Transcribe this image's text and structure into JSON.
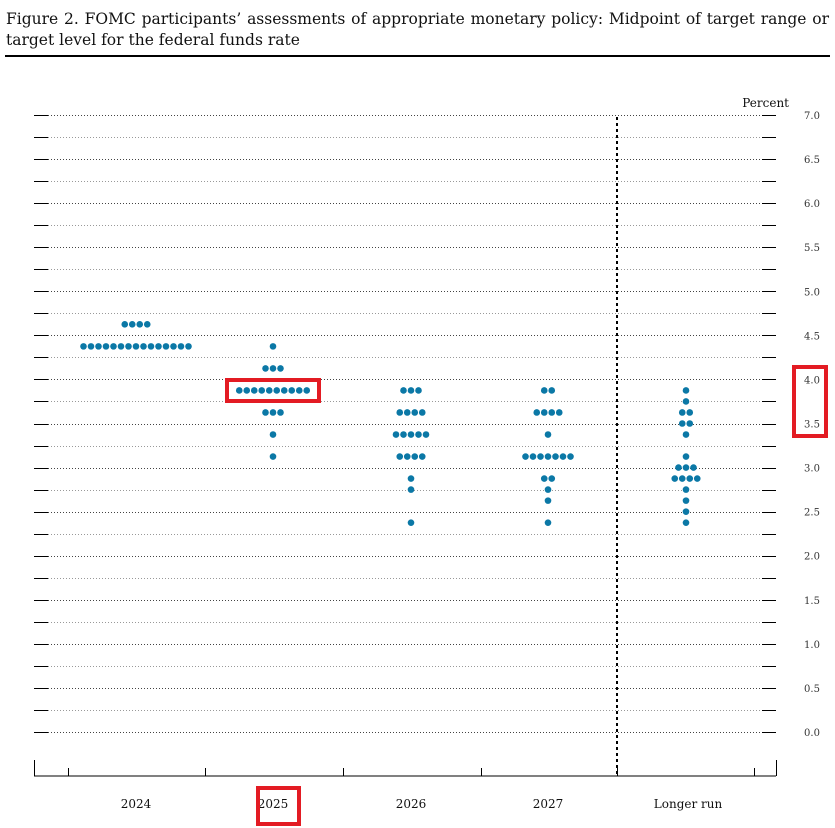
{
  "figure": {
    "caption": "Figure 2.  FOMC participants’ assessments of appropriate monetary policy: Midpoint of target range or target level for the federal funds rate"
  },
  "chart_data": {
    "type": "scatter",
    "chart_style": "dot plot",
    "title": "",
    "ylabel": "Percent",
    "xlabel": "",
    "ylim": [
      0,
      7
    ],
    "y_ticks": [
      "0.0",
      "0.5",
      "1.0",
      "1.5",
      "2.0",
      "2.5",
      "3.0",
      "3.5",
      "4.0",
      "4.5",
      "5.0",
      "5.5",
      "6.0",
      "6.5",
      "7.0"
    ],
    "categories": [
      "2024",
      "2025",
      "2026",
      "2027",
      "Longer run"
    ],
    "dot_color": "#0b78a6",
    "highlight_color": "#e31b23",
    "highlights": [
      "2025 row at 3.875",
      "y-axis labels 3.5–4.0",
      "2025 category label"
    ],
    "distributions": [
      {
        "category": "2024",
        "points": [
          {
            "rate": 4.625,
            "count": 4
          },
          {
            "rate": 4.375,
            "count": 15
          }
        ]
      },
      {
        "category": "2025",
        "points": [
          {
            "rate": 4.375,
            "count": 1
          },
          {
            "rate": 4.125,
            "count": 3
          },
          {
            "rate": 3.875,
            "count": 10
          },
          {
            "rate": 3.625,
            "count": 3
          },
          {
            "rate": 3.375,
            "count": 1
          },
          {
            "rate": 3.125,
            "count": 1
          }
        ]
      },
      {
        "category": "2026",
        "points": [
          {
            "rate": 3.875,
            "count": 3
          },
          {
            "rate": 3.625,
            "count": 4
          },
          {
            "rate": 3.375,
            "count": 5
          },
          {
            "rate": 3.125,
            "count": 4
          },
          {
            "rate": 2.875,
            "count": 1
          },
          {
            "rate": 2.75,
            "count": 1
          },
          {
            "rate": 2.375,
            "count": 1
          }
        ]
      },
      {
        "category": "2027",
        "points": [
          {
            "rate": 3.875,
            "count": 2
          },
          {
            "rate": 3.625,
            "count": 4
          },
          {
            "rate": 3.375,
            "count": 1
          },
          {
            "rate": 3.125,
            "count": 7
          },
          {
            "rate": 2.875,
            "count": 2
          },
          {
            "rate": 2.75,
            "count": 1
          },
          {
            "rate": 2.625,
            "count": 1
          },
          {
            "rate": 2.375,
            "count": 1
          }
        ]
      },
      {
        "category": "Longer run",
        "points": [
          {
            "rate": 3.875,
            "count": 1
          },
          {
            "rate": 3.75,
            "count": 1
          },
          {
            "rate": 3.625,
            "count": 2
          },
          {
            "rate": 3.5,
            "count": 2
          },
          {
            "rate": 3.375,
            "count": 1
          },
          {
            "rate": 3.125,
            "count": 1
          },
          {
            "rate": 3.0,
            "count": 3
          },
          {
            "rate": 2.875,
            "count": 4
          },
          {
            "rate": 2.75,
            "count": 1
          },
          {
            "rate": 2.625,
            "count": 1
          },
          {
            "rate": 2.5,
            "count": 1
          },
          {
            "rate": 2.375,
            "count": 1
          }
        ]
      }
    ]
  }
}
